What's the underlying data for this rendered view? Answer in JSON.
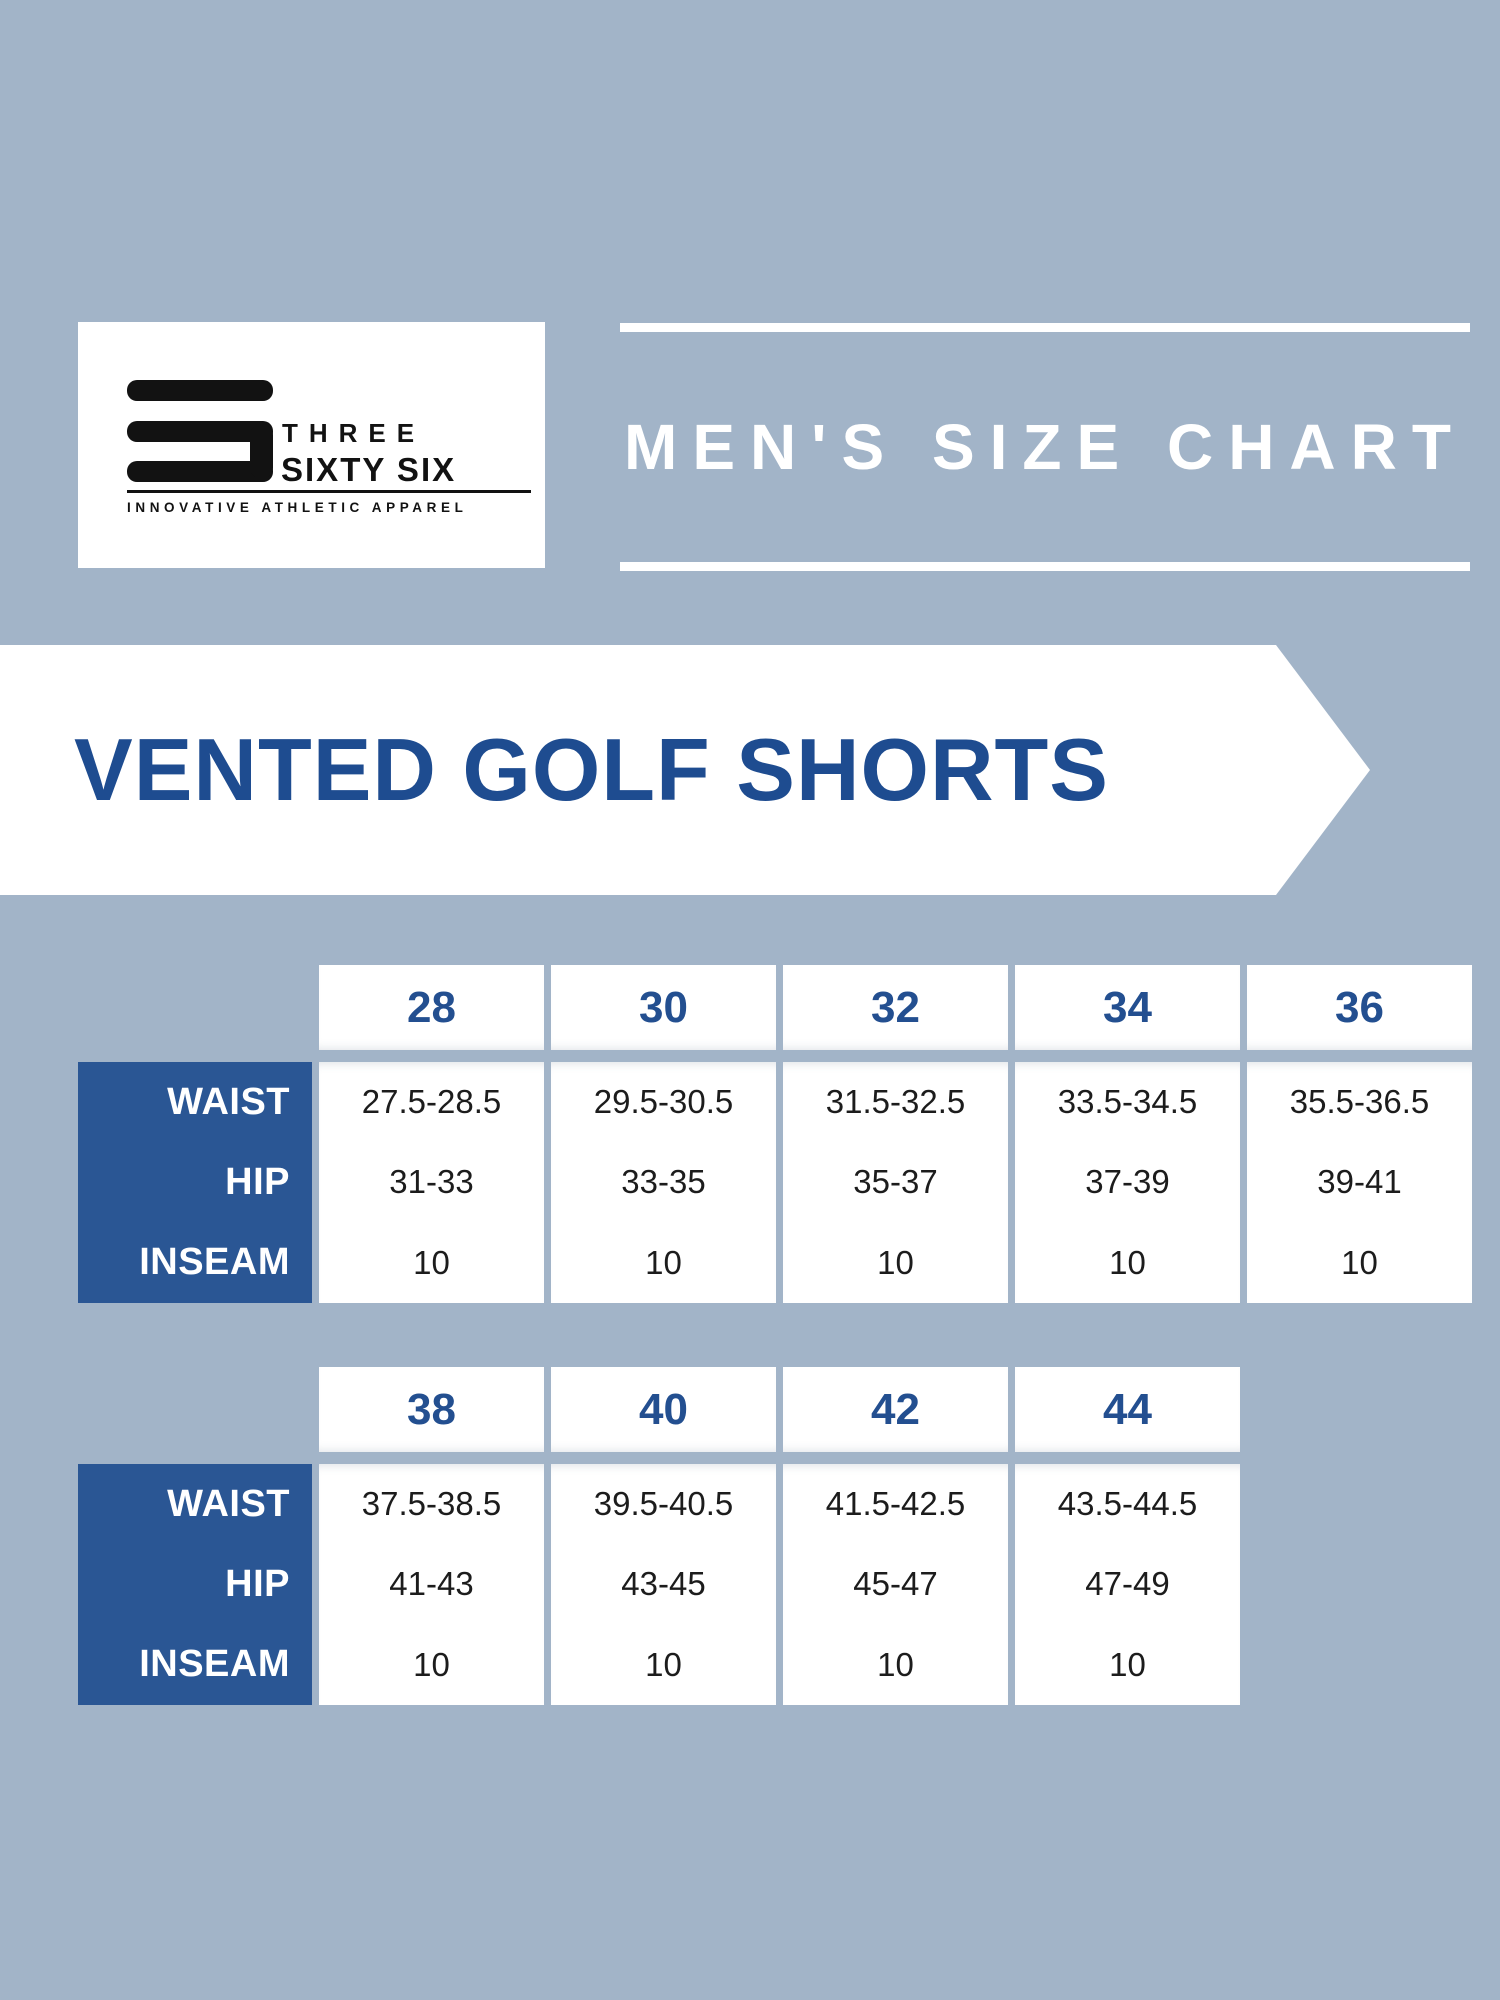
{
  "colors": {
    "page_background": "#a2b4c8",
    "brand_blue": "#2a5694",
    "header_number_blue": "#234f90",
    "banner_title_blue": "#1e4c90",
    "card_white": "#ffffff",
    "body_text": "#1c1c1c",
    "logo_black": "#121212"
  },
  "logo": {
    "mark_icon": "three-bar-s-icon",
    "line1": "THREE",
    "line2": "SIXTY SIX",
    "tagline": "INNOVATIVE ATHLETIC APPAREL"
  },
  "header": {
    "title": "MEN'S SIZE CHART"
  },
  "banner": {
    "title": "VENTED GOLF SHORTS"
  },
  "chart_data": [
    {
      "type": "table",
      "title": "Vented golf shorts sizes 28-36",
      "categories": [
        "28",
        "30",
        "32",
        "34",
        "36"
      ],
      "rows": [
        {
          "label": "WAIST",
          "values": [
            "27.5-28.5",
            "29.5-30.5",
            "31.5-32.5",
            "33.5-34.5",
            "35.5-36.5"
          ]
        },
        {
          "label": "HIP",
          "values": [
            "31-33",
            "33-35",
            "35-37",
            "37-39",
            "39-41"
          ]
        },
        {
          "label": "INSEAM",
          "values": [
            "10",
            "10",
            "10",
            "10",
            "10"
          ]
        }
      ]
    },
    {
      "type": "table",
      "title": "Vented golf shorts sizes 38-44",
      "categories": [
        "38",
        "40",
        "42",
        "44"
      ],
      "rows": [
        {
          "label": "WAIST",
          "values": [
            "37.5-38.5",
            "39.5-40.5",
            "41.5-42.5",
            "43.5-44.5"
          ]
        },
        {
          "label": "HIP",
          "values": [
            "41-43",
            "43-45",
            "45-47",
            "47-49"
          ]
        },
        {
          "label": "INSEAM",
          "values": [
            "10",
            "10",
            "10",
            "10"
          ]
        }
      ]
    }
  ]
}
